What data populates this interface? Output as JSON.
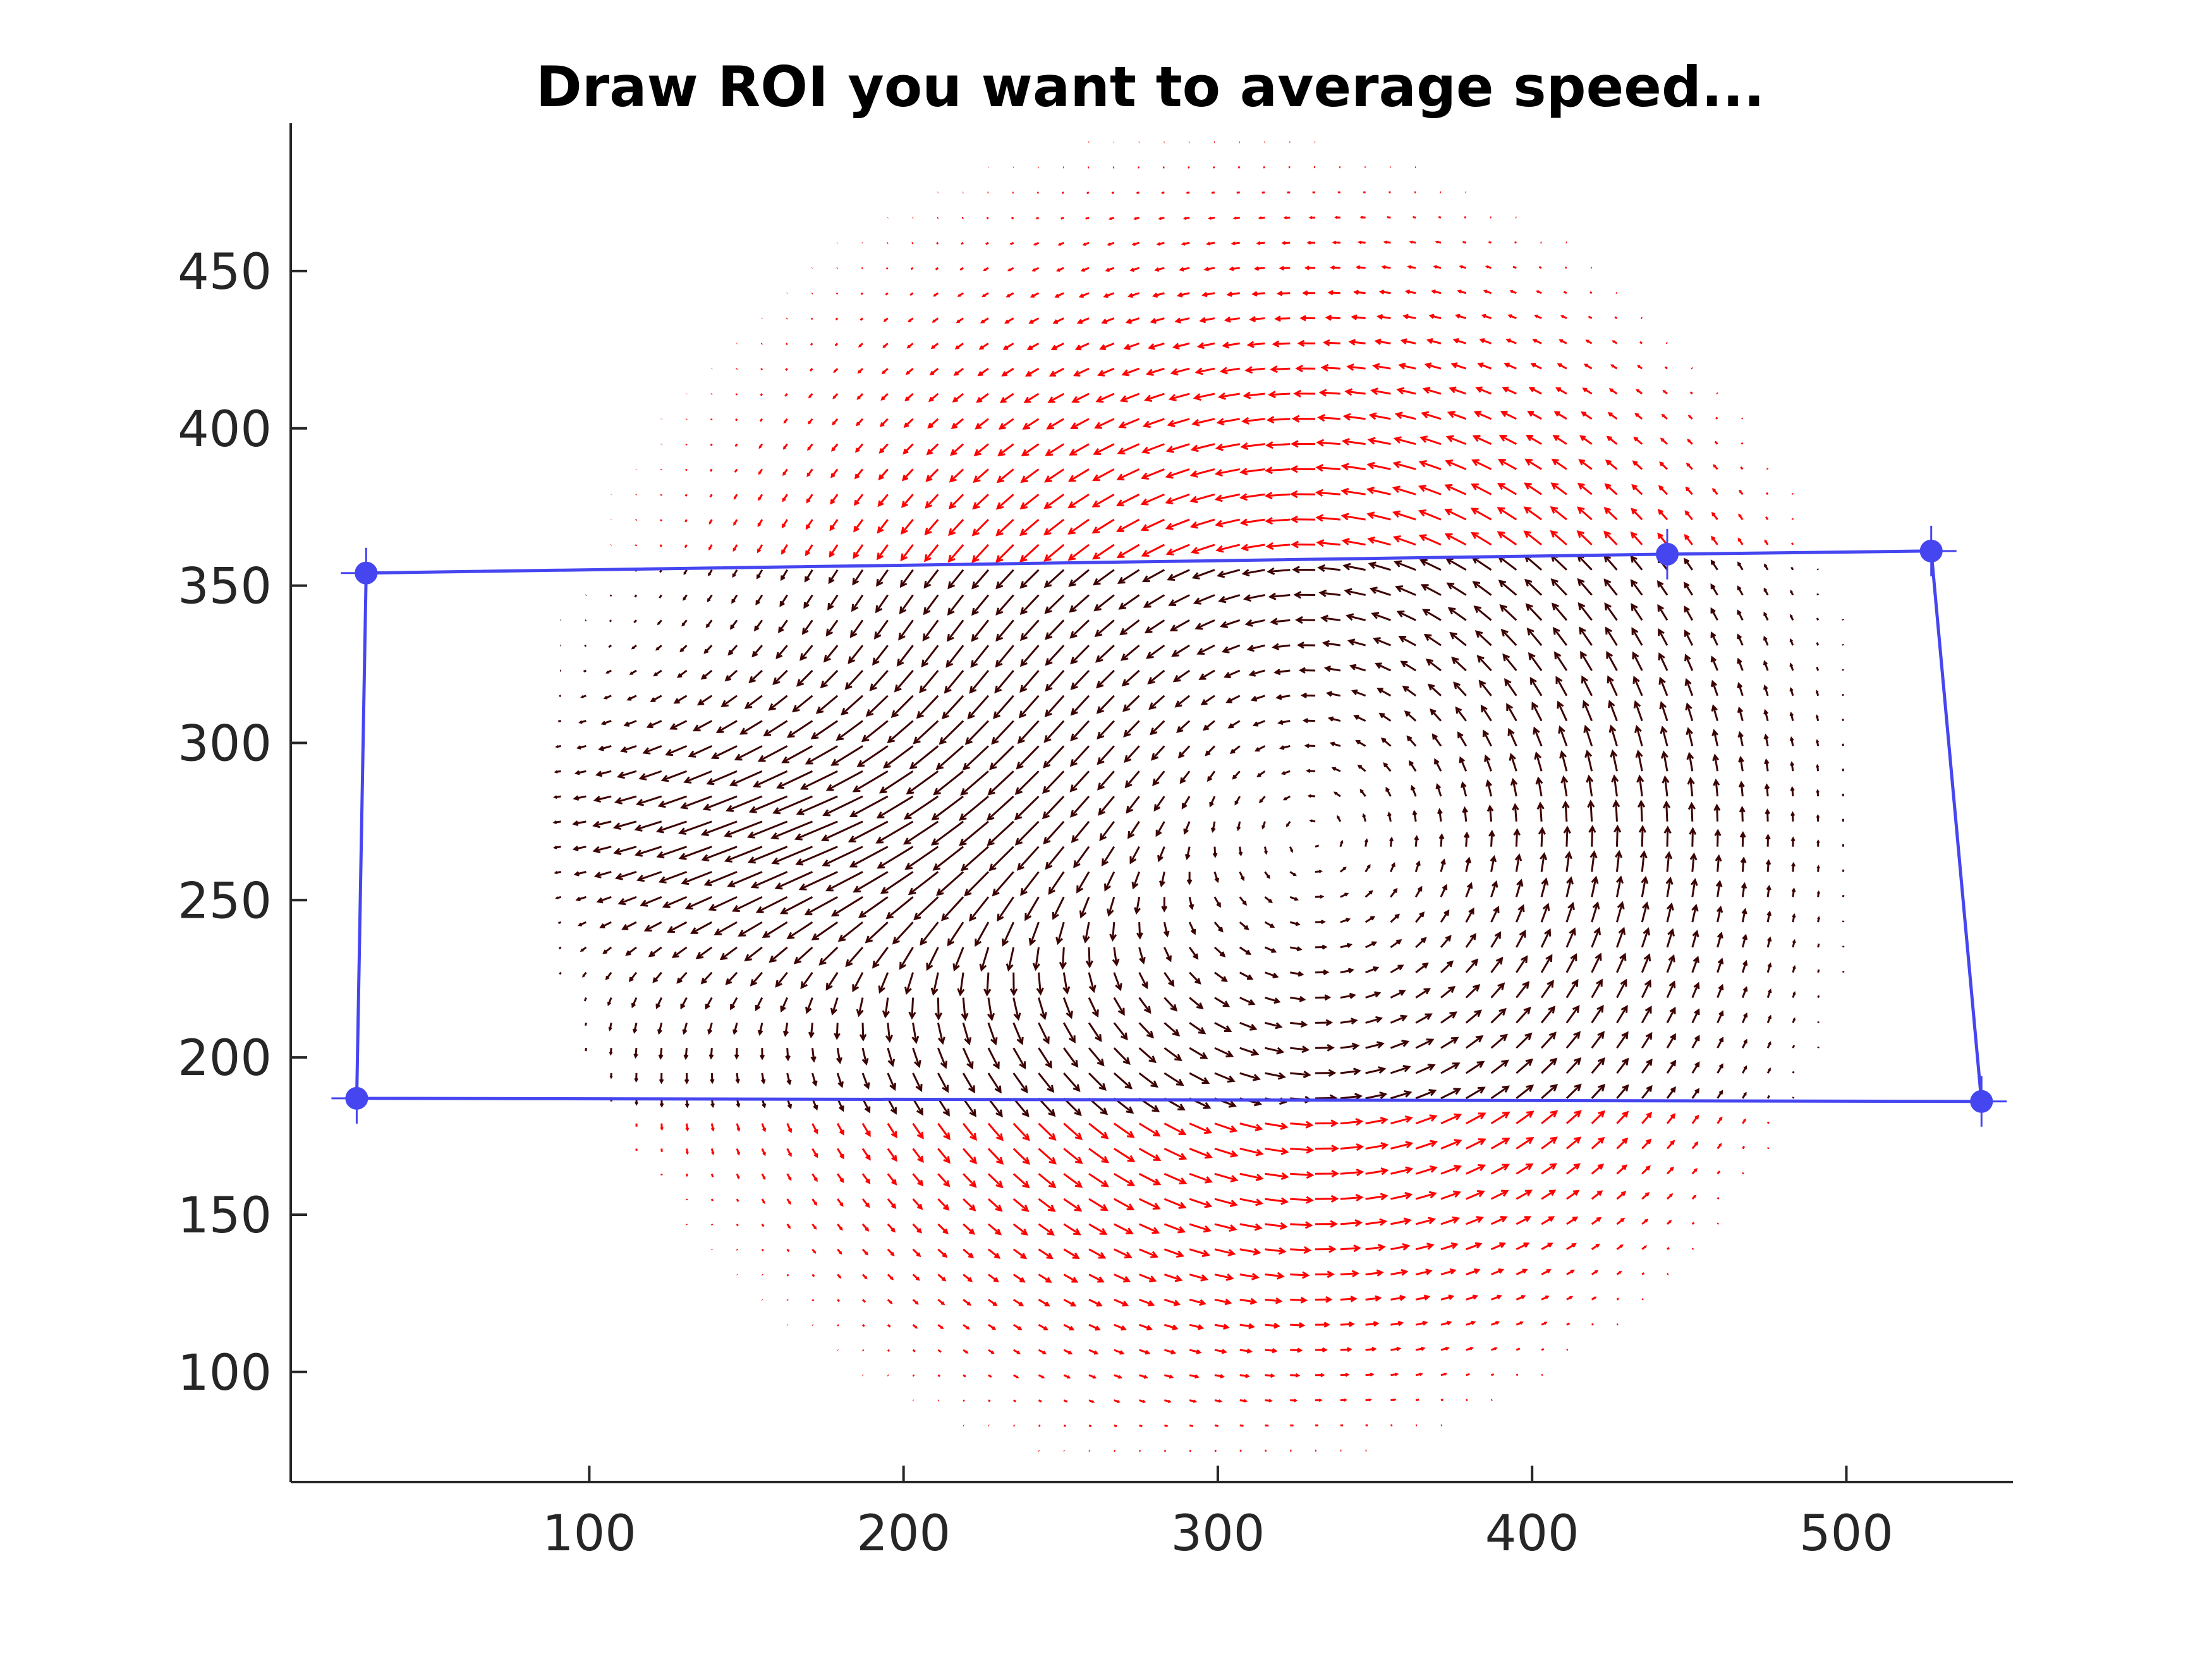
{
  "window": {
    "title": "Draw ROI you want to average speed..."
  },
  "colors": {
    "background": "#ffffff",
    "axis": "#262626",
    "roi": "#4646f0",
    "outside_roi_vectors": "#ff0000",
    "inside_roi_vectors": "#3c0000"
  },
  "chart_data": {
    "type": "scatter",
    "subtype": "quiver",
    "title": "Draw ROI you want to average speed...",
    "xlabel": "",
    "ylabel": "",
    "xlim": [
      5,
      553
    ],
    "ylim": [
      65,
      497
    ],
    "xticks": [
      100,
      200,
      300,
      400,
      500
    ],
    "yticks": [
      100,
      150,
      200,
      250,
      300,
      350,
      400,
      450
    ],
    "grid": false,
    "field": {
      "domain_center": [
        295,
        281
      ],
      "domain_radius_x": 212,
      "domain_radius_y": 214,
      "grid_spacing": 8,
      "vortex_center": [
        330,
        270
      ],
      "strong_flow_band_y": [
        200,
        330
      ],
      "strong_flow_x": [
        70,
        260
      ]
    },
    "roi": {
      "vertices": [
        {
          "x": 29,
          "y": 354
        },
        {
          "x": 443,
          "y": 360
        },
        {
          "x": 527,
          "y": 361
        },
        {
          "x": 543,
          "y": 186
        },
        {
          "x": 26,
          "y": 187
        }
      ]
    }
  }
}
